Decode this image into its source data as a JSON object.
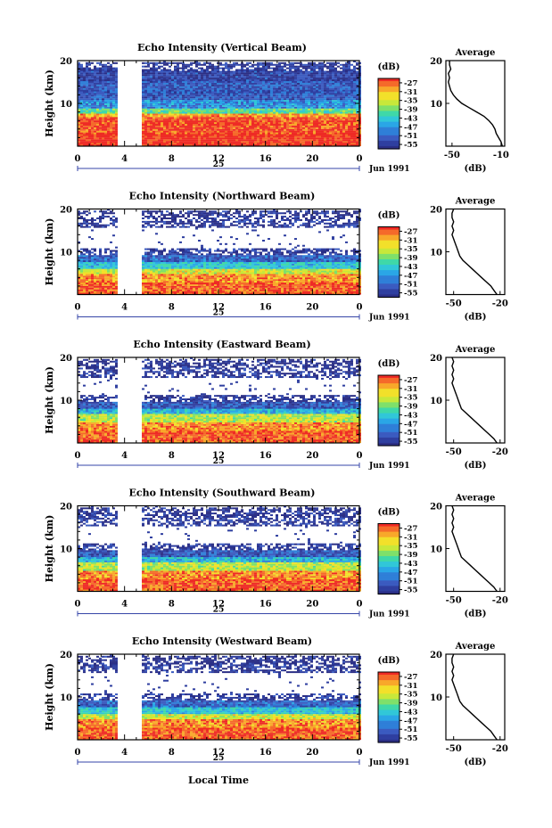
{
  "figure": {
    "xlabel": "Local Time",
    "date_label": "Jun 1991",
    "day_label": "25",
    "colorbar_unit": "(dB)",
    "avg_title": "Average",
    "avg_xlabel": "(dB)",
    "ylabel": "Height (km)"
  },
  "chart_data": [
    {
      "type": "heatmap",
      "title": "Echo Intensity (Vertical Beam)",
      "ylabel": "Height (km)",
      "xlabel": "",
      "x_ticks": [
        "0",
        "4",
        "8",
        "12",
        "16",
        "20",
        "0"
      ],
      "xlim": [
        0,
        24
      ],
      "y_ticks": [
        "20",
        "10"
      ],
      "ylim": [
        0,
        20
      ],
      "colorbar": {
        "unit": "(dB)",
        "ticks": [
          "-27",
          "-31",
          "-35",
          "-39",
          "-43",
          "-47",
          "-51",
          "-55"
        ],
        "range": [
          -57,
          -25
        ]
      },
      "data_gap_hours": [
        3.3,
        5.4
      ],
      "grid": false,
      "profile_layers": [
        {
          "top_km": 2.5,
          "db": -25
        },
        {
          "top_km": 6.5,
          "db": -26
        },
        {
          "top_km": 7.5,
          "db": -30
        },
        {
          "top_km": 8.5,
          "db": -40
        },
        {
          "top_km": 10.5,
          "db": -48
        },
        {
          "top_km": 15,
          "db": -52
        },
        {
          "top_km": 17.5,
          "db": -54
        },
        {
          "top_km": 19.5,
          "db": -55
        }
      ],
      "coverage": 0.72,
      "average": {
        "title": "Average",
        "xlabel": "(dB)",
        "x_ticks": [
          "-50",
          "-10"
        ],
        "xlim": [
          -55,
          -7
        ],
        "y_ticks": [
          "20",
          "10"
        ],
        "ylim": [
          0,
          20
        ],
        "y": [
          0,
          1,
          2,
          3,
          4,
          5,
          6,
          7,
          8,
          9,
          10,
          11,
          12,
          13,
          14,
          15,
          16,
          17,
          18,
          19,
          20
        ],
        "x": [
          -9,
          -10,
          -12,
          -14,
          -15,
          -17,
          -20,
          -24,
          -30,
          -36,
          -42,
          -46,
          -49,
          -51,
          -52,
          -53,
          -52,
          -53,
          -51,
          -52,
          -52
        ]
      }
    },
    {
      "type": "heatmap",
      "title": "Echo Intensity (Northward Beam)",
      "ylabel": "Height (km)",
      "xlabel": "",
      "x_ticks": [
        "0",
        "4",
        "8",
        "12",
        "16",
        "20",
        "0"
      ],
      "xlim": [
        0,
        24
      ],
      "y_ticks": [
        "20",
        "10"
      ],
      "ylim": [
        0,
        20
      ],
      "colorbar": {
        "unit": "(dB)",
        "ticks": [
          "-27",
          "-31",
          "-35",
          "-39",
          "-43",
          "-47",
          "-51",
          "-55"
        ],
        "range": [
          -57,
          -25
        ]
      },
      "data_gap_hours": [
        3.3,
        5.4
      ],
      "grid": false,
      "profile_layers": [
        {
          "top_km": 2.5,
          "db": -27
        },
        {
          "top_km": 4.5,
          "db": -29
        },
        {
          "top_km": 6.0,
          "db": -35
        },
        {
          "top_km": 7.5,
          "db": -44
        },
        {
          "top_km": 9.0,
          "db": -51
        },
        {
          "top_km": 10.5,
          "db": -55
        },
        {
          "top_km": 15.5,
          "db": -70
        },
        {
          "top_km": 17.5,
          "db": -55
        },
        {
          "top_km": 19.5,
          "db": -56
        }
      ],
      "coverage": 0.6,
      "average": {
        "title": "Average",
        "xlabel": "(dB)",
        "x_ticks": [
          "-50",
          "-20"
        ],
        "xlim": [
          -55,
          -17
        ],
        "y": [
          0,
          1,
          2,
          3,
          4,
          5,
          6,
          7,
          8,
          9,
          10,
          11,
          12,
          13,
          14,
          15,
          16,
          17,
          18,
          19,
          20
        ],
        "x": [
          -22,
          -24,
          -26,
          -29,
          -32,
          -35,
          -38,
          -41,
          -44,
          -46,
          -47,
          -48,
          -49,
          -50,
          -51,
          -50,
          -51,
          -50,
          -51,
          -51,
          -50
        ],
        "y_ticks": [
          "20",
          "10"
        ],
        "ylim": [
          0,
          20
        ]
      }
    },
    {
      "type": "heatmap",
      "title": "Echo Intensity (Eastward Beam)",
      "ylabel": "Height (km)",
      "xlabel": "",
      "x_ticks": [
        "0",
        "4",
        "8",
        "12",
        "16",
        "20",
        "0"
      ],
      "xlim": [
        0,
        24
      ],
      "y_ticks": [
        "20",
        "10"
      ],
      "ylim": [
        0,
        20
      ],
      "colorbar": {
        "unit": "(dB)",
        "ticks": [
          "-27",
          "-31",
          "-35",
          "-39",
          "-43",
          "-47",
          "-51",
          "-55"
        ],
        "range": [
          -57,
          -25
        ]
      },
      "data_gap_hours": [
        3.3,
        5.4
      ],
      "grid": false,
      "profile_layers": [
        {
          "top_km": 2.5,
          "db": -27
        },
        {
          "top_km": 4.5,
          "db": -29
        },
        {
          "top_km": 6.5,
          "db": -36
        },
        {
          "top_km": 8.0,
          "db": -45
        },
        {
          "top_km": 9.5,
          "db": -52
        },
        {
          "top_km": 11.0,
          "db": -55
        },
        {
          "top_km": 15.0,
          "db": -70
        },
        {
          "top_km": 17.5,
          "db": -55
        },
        {
          "top_km": 19.5,
          "db": -56
        }
      ],
      "coverage": 0.6,
      "average": {
        "title": "Average",
        "xlabel": "(dB)",
        "x_ticks": [
          "-50",
          "-20"
        ],
        "xlim": [
          -55,
          -17
        ],
        "y": [
          0,
          1,
          2,
          3,
          4,
          5,
          6,
          7,
          8,
          9,
          10,
          11,
          12,
          13,
          14,
          15,
          16,
          17,
          18,
          19,
          20
        ],
        "x": [
          -22,
          -24,
          -27,
          -30,
          -33,
          -36,
          -39,
          -42,
          -45,
          -46,
          -47,
          -48,
          -49,
          -50,
          -51,
          -50,
          -51,
          -50,
          -51,
          -50,
          -51
        ],
        "y_ticks": [
          "20",
          "10"
        ],
        "ylim": [
          0,
          20
        ]
      }
    },
    {
      "type": "heatmap",
      "title": "Echo Intensity (Southward Beam)",
      "ylabel": "Height (km)",
      "xlabel": "",
      "x_ticks": [
        "0",
        "4",
        "8",
        "12",
        "16",
        "20",
        "0"
      ],
      "xlim": [
        0,
        24
      ],
      "y_ticks": [
        "20",
        "10"
      ],
      "ylim": [
        0,
        20
      ],
      "colorbar": {
        "unit": "(dB)",
        "ticks": [
          "-27",
          "-31",
          "-35",
          "-39",
          "-43",
          "-47",
          "-51",
          "-55"
        ],
        "range": [
          -57,
          -25
        ]
      },
      "data_gap_hours": [
        3.3,
        5.4
      ],
      "grid": false,
      "profile_layers": [
        {
          "top_km": 2.5,
          "db": -27
        },
        {
          "top_km": 4.5,
          "db": -29
        },
        {
          "top_km": 6.5,
          "db": -36
        },
        {
          "top_km": 8.0,
          "db": -45
        },
        {
          "top_km": 9.5,
          "db": -52
        },
        {
          "top_km": 11.0,
          "db": -55
        },
        {
          "top_km": 15.0,
          "db": -70
        },
        {
          "top_km": 17.5,
          "db": -55
        },
        {
          "top_km": 19.5,
          "db": -56
        }
      ],
      "coverage": 0.6,
      "average": {
        "title": "Average",
        "xlabel": "(dB)",
        "x_ticks": [
          "-50",
          "-20"
        ],
        "xlim": [
          -55,
          -17
        ],
        "y": [
          0,
          1,
          2,
          3,
          4,
          5,
          6,
          7,
          8,
          9,
          10,
          11,
          12,
          13,
          14,
          15,
          16,
          17,
          18,
          19,
          20
        ],
        "x": [
          -22,
          -24,
          -27,
          -30,
          -33,
          -36,
          -39,
          -42,
          -45,
          -46,
          -47,
          -48,
          -49,
          -50,
          -51,
          -50,
          -51,
          -50,
          -51,
          -50,
          -51
        ],
        "y_ticks": [
          "20",
          "10"
        ],
        "ylim": [
          0,
          20
        ]
      }
    },
    {
      "type": "heatmap",
      "title": "Echo Intensity (Westward Beam)",
      "ylabel": "Height (km)",
      "xlabel": "",
      "x_ticks": [
        "0",
        "4",
        "8",
        "12",
        "16",
        "20",
        "0"
      ],
      "xlim": [
        0,
        24
      ],
      "y_ticks": [
        "20",
        "10"
      ],
      "ylim": [
        0,
        20
      ],
      "colorbar": {
        "unit": "(dB)",
        "ticks": [
          "-27",
          "-31",
          "-35",
          "-39",
          "-43",
          "-47",
          "-51",
          "-55"
        ],
        "range": [
          -57,
          -25
        ]
      },
      "data_gap_hours": [
        3.3,
        5.4
      ],
      "grid": false,
      "profile_layers": [
        {
          "top_km": 2.5,
          "db": -27
        },
        {
          "top_km": 4.5,
          "db": -29
        },
        {
          "top_km": 6.0,
          "db": -35
        },
        {
          "top_km": 7.5,
          "db": -44
        },
        {
          "top_km": 9.0,
          "db": -51
        },
        {
          "top_km": 10.5,
          "db": -55
        },
        {
          "top_km": 15.5,
          "db": -70
        },
        {
          "top_km": 17.5,
          "db": -55
        },
        {
          "top_km": 19.5,
          "db": -56
        }
      ],
      "coverage": 0.6,
      "average": {
        "title": "Average",
        "xlabel": "(dB)",
        "x_ticks": [
          "-50",
          "-20"
        ],
        "xlim": [
          -55,
          -17
        ],
        "y": [
          0,
          1,
          2,
          3,
          4,
          5,
          6,
          7,
          8,
          9,
          10,
          11,
          12,
          13,
          14,
          15,
          16,
          17,
          18,
          19,
          20
        ],
        "x": [
          -22,
          -24,
          -26,
          -29,
          -32,
          -35,
          -38,
          -41,
          -44,
          -46,
          -47,
          -48,
          -49,
          -50,
          -51,
          -50,
          -51,
          -50,
          -51,
          -51,
          -50
        ],
        "y_ticks": [
          "20",
          "10"
        ],
        "ylim": [
          0,
          20
        ]
      }
    }
  ]
}
